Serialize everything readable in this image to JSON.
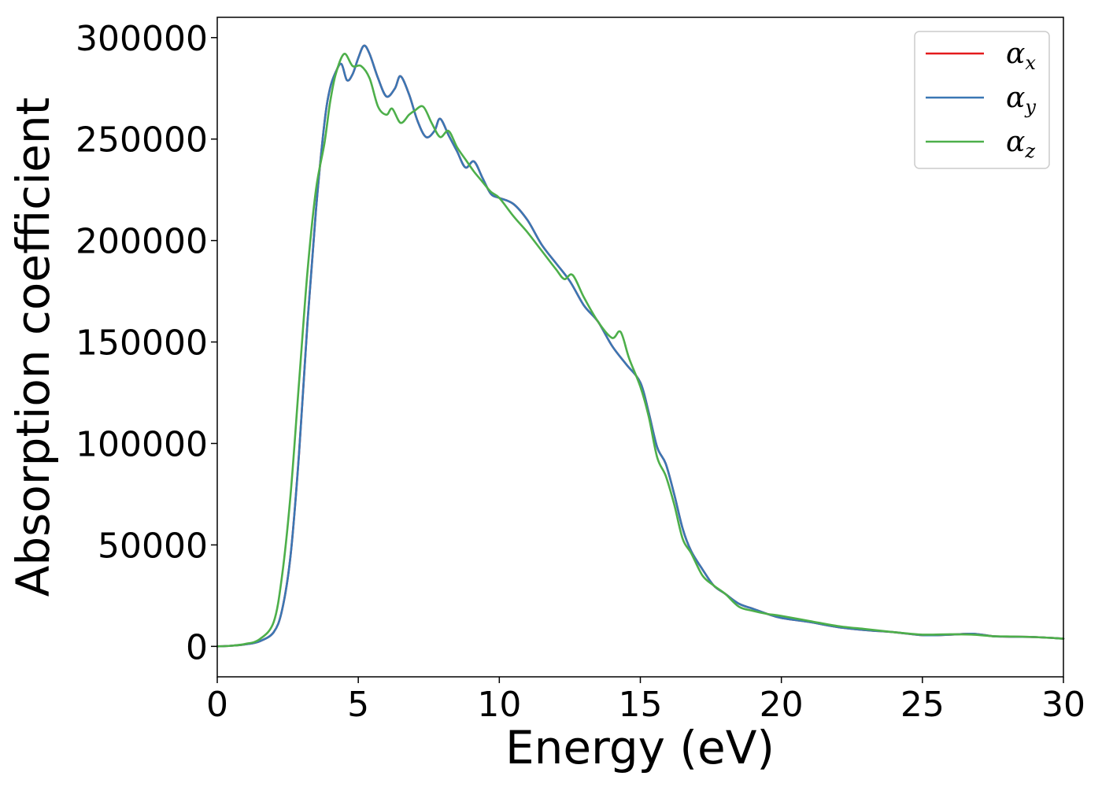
{
  "chart_data": {
    "type": "line",
    "xlabel": "Energy (eV)",
    "ylabel": "Absorption coefficient",
    "xlim": [
      0,
      30
    ],
    "ylim": [
      -15000,
      310000
    ],
    "xticks": [
      0,
      5,
      10,
      15,
      20,
      25,
      30
    ],
    "yticks": [
      0,
      50000,
      100000,
      150000,
      200000,
      250000,
      300000
    ],
    "grid": false,
    "legend_position": "top-right",
    "series": [
      {
        "name": "x",
        "legend_symbol": "α",
        "legend_subscript": "x",
        "color": "#e41a1c",
        "x": [
          0,
          0.5,
          1.0,
          1.5,
          2.0,
          2.3,
          2.6,
          2.9,
          3.2,
          3.5,
          3.8,
          4.0,
          4.2,
          4.4,
          4.6,
          4.8,
          5.0,
          5.2,
          5.4,
          5.7,
          6.0,
          6.3,
          6.5,
          6.8,
          7.1,
          7.4,
          7.7,
          7.9,
          8.2,
          8.5,
          8.8,
          9.1,
          9.4,
          9.7,
          10.0,
          10.5,
          11.0,
          11.5,
          12.0,
          12.5,
          13.0,
          13.5,
          14.0,
          14.5,
          15.0,
          15.3,
          15.6,
          15.9,
          16.2,
          16.5,
          16.8,
          17.2,
          17.6,
          18.0,
          18.5,
          19.0,
          19.5,
          20.0,
          21.0,
          22.0,
          23.0,
          24.0,
          25.0,
          26.0,
          26.8,
          27.5,
          28.0,
          29.0,
          30.0
        ],
        "y": [
          0,
          300,
          1000,
          2500,
          7000,
          18000,
          45000,
          95000,
          160000,
          215000,
          258000,
          275000,
          283000,
          287000,
          279000,
          282000,
          290000,
          296000,
          292000,
          280000,
          271000,
          275000,
          281000,
          272000,
          259000,
          251000,
          254000,
          260000,
          252000,
          244000,
          236000,
          239000,
          231000,
          223000,
          221000,
          218000,
          210000,
          198000,
          189000,
          180000,
          168000,
          160000,
          148000,
          139000,
          130000,
          115000,
          98000,
          90000,
          75000,
          58000,
          47000,
          38000,
          30000,
          26000,
          21000,
          18500,
          16000,
          14000,
          12000,
          9500,
          8000,
          7000,
          5500,
          5800,
          6200,
          5000,
          4800,
          4600,
          3800
        ]
      },
      {
        "name": "y",
        "legend_symbol": "α",
        "legend_subscript": "y",
        "color": "#3a77b4",
        "x": [
          0,
          0.5,
          1.0,
          1.5,
          2.0,
          2.3,
          2.6,
          2.9,
          3.2,
          3.5,
          3.8,
          4.0,
          4.2,
          4.4,
          4.6,
          4.8,
          5.0,
          5.2,
          5.4,
          5.7,
          6.0,
          6.3,
          6.5,
          6.8,
          7.1,
          7.4,
          7.7,
          7.9,
          8.2,
          8.5,
          8.8,
          9.1,
          9.4,
          9.7,
          10.0,
          10.5,
          11.0,
          11.5,
          12.0,
          12.5,
          13.0,
          13.5,
          14.0,
          14.5,
          15.0,
          15.3,
          15.6,
          15.9,
          16.2,
          16.5,
          16.8,
          17.2,
          17.6,
          18.0,
          18.5,
          19.0,
          19.5,
          20.0,
          21.0,
          22.0,
          23.0,
          24.0,
          25.0,
          26.0,
          26.8,
          27.5,
          28.0,
          29.0,
          30.0
        ],
        "y": [
          0,
          300,
          1000,
          2500,
          7000,
          18000,
          45000,
          95000,
          160000,
          215000,
          258000,
          275000,
          283000,
          287000,
          279000,
          282000,
          290000,
          296000,
          292000,
          280000,
          271000,
          275000,
          281000,
          272000,
          259000,
          251000,
          254000,
          260000,
          252000,
          244000,
          236000,
          239000,
          231000,
          223000,
          221000,
          218000,
          210000,
          198000,
          189000,
          180000,
          168000,
          160000,
          148000,
          139000,
          130000,
          115000,
          98000,
          90000,
          75000,
          58000,
          47000,
          38000,
          30000,
          26000,
          21000,
          18500,
          16000,
          14000,
          12000,
          9500,
          8000,
          7000,
          5500,
          5800,
          6200,
          5000,
          4800,
          4600,
          3800
        ]
      },
      {
        "name": "z",
        "legend_symbol": "α",
        "legend_subscript": "z",
        "color": "#4daf4a",
        "x": [
          0,
          0.5,
          1.0,
          1.5,
          2.0,
          2.3,
          2.6,
          2.9,
          3.2,
          3.5,
          3.8,
          4.0,
          4.2,
          4.5,
          4.8,
          5.1,
          5.4,
          5.7,
          6.0,
          6.2,
          6.5,
          6.8,
          7.0,
          7.3,
          7.6,
          7.9,
          8.2,
          8.5,
          8.8,
          9.1,
          9.4,
          9.7,
          10.0,
          10.5,
          11.0,
          11.5,
          12.0,
          12.3,
          12.6,
          13.0,
          13.5,
          14.0,
          14.3,
          14.6,
          15.0,
          15.3,
          15.6,
          15.9,
          16.2,
          16.5,
          16.8,
          17.2,
          17.6,
          18.0,
          18.5,
          19.0,
          19.5,
          20.0,
          21.0,
          22.0,
          23.0,
          24.0,
          25.0,
          26.0,
          26.8,
          27.5,
          28.0,
          29.0,
          30.0
        ],
        "y": [
          0,
          300,
          1200,
          3500,
          12000,
          35000,
          75000,
          130000,
          185000,
          225000,
          248000,
          268000,
          282000,
          292000,
          286000,
          286000,
          280000,
          266000,
          262000,
          265000,
          258000,
          262000,
          264000,
          266000,
          258000,
          251000,
          254000,
          246000,
          240000,
          234000,
          229000,
          224000,
          221000,
          212000,
          204000,
          195000,
          186000,
          181000,
          183000,
          172000,
          160000,
          152000,
          155000,
          142000,
          128000,
          113000,
          93000,
          84000,
          70000,
          53000,
          46000,
          35000,
          30000,
          26000,
          19500,
          17500,
          16000,
          15000,
          12500,
          10000,
          8500,
          7000,
          5800,
          6000,
          5800,
          5000,
          4900,
          4600,
          3800
        ]
      }
    ]
  }
}
